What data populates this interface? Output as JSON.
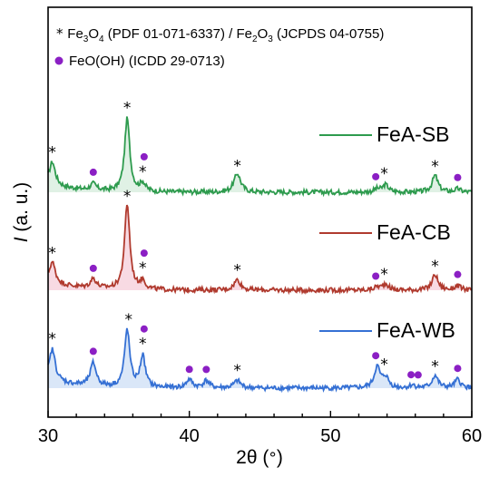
{
  "chart_data": {
    "type": "line",
    "xlabel_prefix": "2θ (",
    "xlabel_unit": "°",
    "xlabel_suffix": ")",
    "ylabel_italic": "I",
    "ylabel_rest": " (a. u.)",
    "xlim": [
      30,
      60
    ],
    "xticks": [
      "30",
      "40",
      "50",
      "60"
    ],
    "grid": false,
    "legend": {
      "star_entry": {
        "marker": "*",
        "parts": [
          {
            "t": "Fe",
            "sub": false
          },
          {
            "t": "3",
            "sub": true
          },
          {
            "t": "O",
            "sub": false
          },
          {
            "t": "4",
            "sub": true
          },
          {
            "t": " (PDF 01-071-6337) / Fe",
            "sub": false
          },
          {
            "t": "2",
            "sub": true
          },
          {
            "t": "O",
            "sub": false
          },
          {
            "t": "3",
            "sub": true
          },
          {
            "t": " (JCPDS 04-0755)",
            "sub": false
          }
        ]
      },
      "dot_entry": {
        "marker": "circle",
        "color": "#8B1FC4",
        "text": "FeO(OH) (ICDD 29-0713)"
      }
    },
    "colors": {
      "dot": "#8B1FC4",
      "star": "#000000"
    },
    "series": [
      {
        "name": "FeA-SB",
        "color": "#2E9B4E",
        "fill": "#DDEFE2",
        "offset": 1.4,
        "amp": 1.0,
        "stars": [
          30.3,
          35.6,
          36.7,
          43.4,
          53.8,
          57.4
        ],
        "dots": [
          33.2,
          36.8,
          53.2,
          59.0
        ]
      },
      {
        "name": "FeA-CB",
        "color": "#B03A2E",
        "fill": "#F7D6E0",
        "offset": 0.7,
        "amp": 1.2,
        "stars": [
          30.3,
          35.6,
          36.7,
          43.4,
          53.8,
          57.4
        ],
        "dots": [
          33.2,
          36.8,
          53.2,
          59.0
        ]
      },
      {
        "name": "FeA-WB",
        "color": "#3570D4",
        "fill": "#D6E4F7",
        "offset": 0.0,
        "amp": 1.0,
        "stars": [
          30.3,
          35.7,
          36.7,
          43.4,
          53.8,
          57.4
        ],
        "dots": [
          33.2,
          36.8,
          40.0,
          41.2,
          53.2,
          55.7,
          56.2,
          59.0
        ]
      }
    ],
    "peaks": [
      {
        "pos": 30.3,
        "width": 0.25,
        "h": [
          0.22,
          0.2,
          0.3
        ]
      },
      {
        "pos": 33.2,
        "width": 0.25,
        "h": [
          0.06,
          0.09,
          0.22
        ]
      },
      {
        "pos": 35.6,
        "width": 0.22,
        "h": [
          0.7,
          0.82,
          0.55
        ]
      },
      {
        "pos": 36.7,
        "width": 0.22,
        "h": [
          0.08,
          0.08,
          0.3
        ]
      },
      {
        "pos": 40.0,
        "width": 0.25,
        "h": [
          0.0,
          0.0,
          0.08
        ]
      },
      {
        "pos": 41.2,
        "width": 0.25,
        "h": [
          0.0,
          0.0,
          0.07
        ]
      },
      {
        "pos": 43.4,
        "width": 0.28,
        "h": [
          0.18,
          0.1,
          0.07
        ]
      },
      {
        "pos": 53.3,
        "width": 0.25,
        "h": [
          0.03,
          0.03,
          0.2
        ]
      },
      {
        "pos": 53.9,
        "width": 0.25,
        "h": [
          0.07,
          0.06,
          0.1
        ]
      },
      {
        "pos": 55.8,
        "width": 0.2,
        "h": [
          0.0,
          0.0,
          0.03
        ]
      },
      {
        "pos": 57.4,
        "width": 0.25,
        "h": [
          0.16,
          0.15,
          0.12
        ]
      },
      {
        "pos": 59.0,
        "width": 0.25,
        "h": [
          0.03,
          0.04,
          0.08
        ]
      }
    ]
  }
}
